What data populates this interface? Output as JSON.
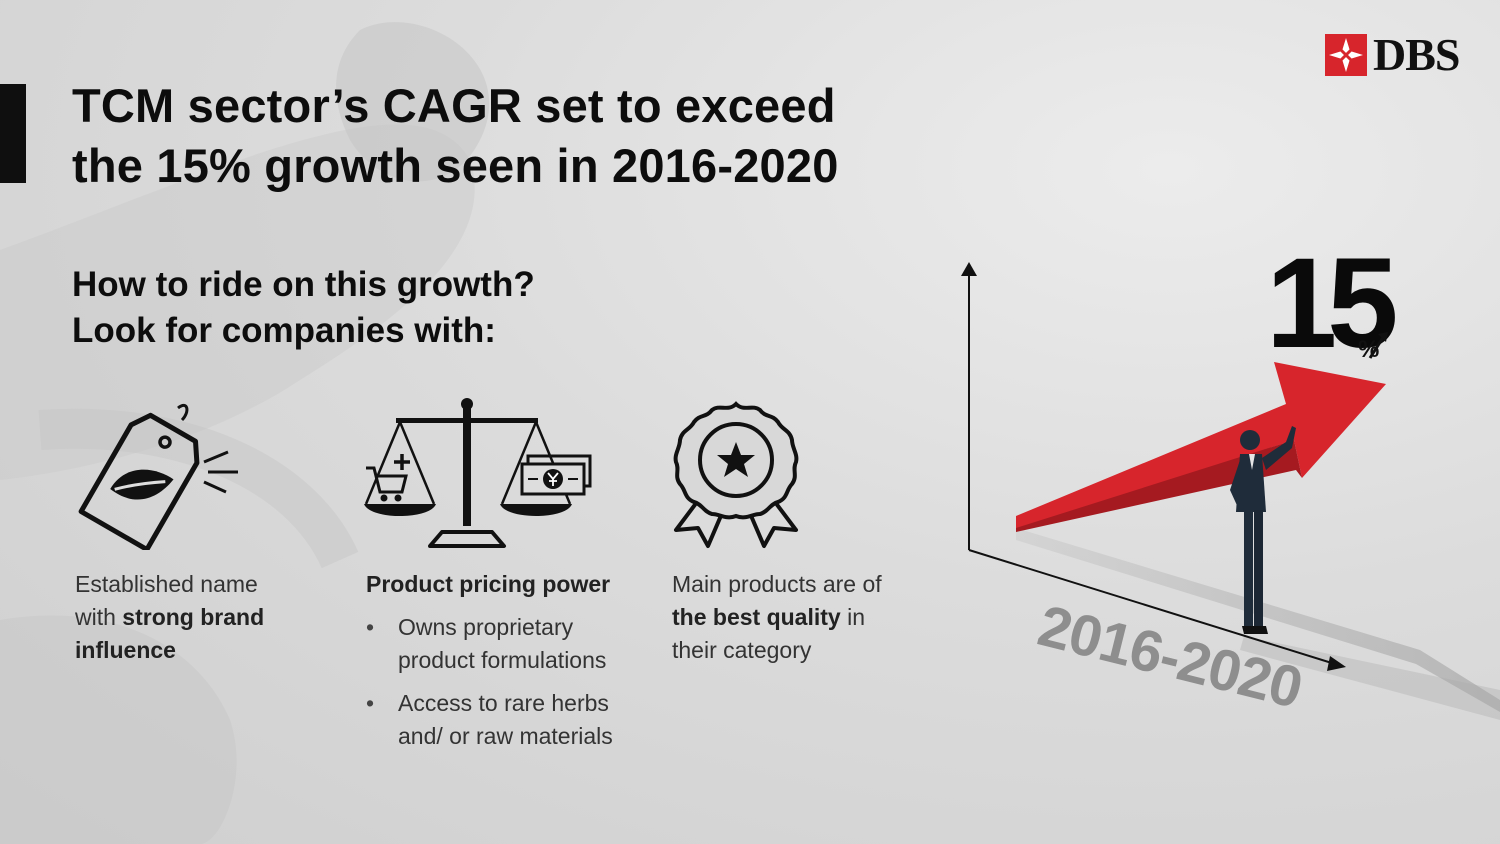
{
  "header": {
    "title_line1": "TCM sector’s CAGR set to exceed",
    "title_line2": "the 15% growth seen in 2016-2020",
    "logo_text": "DBS",
    "brand_color": "#d7252c"
  },
  "intro": {
    "line1": "How to ride on this growth?",
    "line2": "Look for companies with:"
  },
  "features": {
    "brand": {
      "icon": "leaf-tag-icon",
      "text_pre": "Established name with ",
      "text_bold": "strong brand influence"
    },
    "pricing": {
      "icon": "balance-scale-icon",
      "heading": "Product pricing power",
      "bullets": [
        "Owns proprietary product formulations",
        "Access to rare herbs and/ or raw materials"
      ]
    },
    "quality": {
      "icon": "award-medal-icon",
      "text_pre": "Main products are of ",
      "text_bold": "the best quality",
      "text_post": " in their category"
    }
  },
  "growth": {
    "value": "15",
    "unit": "%",
    "period": "2016-2020",
    "arrow_color": "#d7252c"
  }
}
